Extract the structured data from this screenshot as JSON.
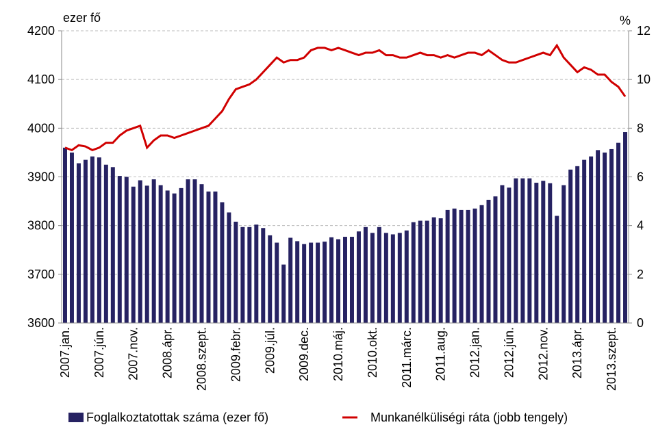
{
  "chart_data": {
    "type": "bar-line",
    "y_label": "ezer fő",
    "y2_label": "%",
    "categories": [
      "2007.jan.",
      null,
      null,
      null,
      null,
      "2007.jún.",
      null,
      null,
      null,
      null,
      "2007.nov.",
      null,
      null,
      null,
      null,
      "2008.ápr.",
      null,
      null,
      null,
      null,
      "2008.szept.",
      null,
      null,
      null,
      null,
      "2009.febr.",
      null,
      null,
      null,
      null,
      "2009.júl.",
      null,
      null,
      null,
      null,
      "2009.dec.",
      null,
      null,
      null,
      null,
      "2010.máj.",
      null,
      null,
      null,
      null,
      "2010.okt.",
      null,
      null,
      null,
      null,
      "2011.márc.",
      null,
      null,
      null,
      null,
      "2011.aug.",
      null,
      null,
      null,
      null,
      "2012.jan.",
      null,
      null,
      null,
      null,
      "2012.jún.",
      null,
      null,
      null,
      null,
      "2012.nov.",
      null,
      null,
      null,
      null,
      "2013.ápr.",
      null,
      null,
      null,
      null,
      "2013.szept.",
      null,
      null
    ],
    "series": [
      {
        "name": "Foglalkoztatottak száma (ezer fő)",
        "color": "#262262",
        "type": "bar",
        "values": [
          3960,
          3950,
          3928,
          3935,
          3942,
          3940,
          3925,
          3920,
          3902,
          3900,
          3880,
          3893,
          3882,
          3895,
          3883,
          3872,
          3866,
          3877,
          3895,
          3895,
          3885,
          3870,
          3870,
          3848,
          3827,
          3808,
          3797,
          3797,
          3802,
          3795,
          3780,
          3765,
          3720,
          3775,
          3768,
          3762,
          3765,
          3765,
          3767,
          3776,
          3772,
          3777,
          3777,
          3788,
          3797,
          3785,
          3797,
          3785,
          3782,
          3785,
          3790,
          3807,
          3810,
          3810,
          3817,
          3815,
          3832,
          3835,
          3832,
          3832,
          3835,
          3842,
          3853,
          3860,
          3883,
          3878,
          3897,
          3897,
          3897,
          3888,
          3892,
          3887,
          3820,
          3883,
          3915,
          3922,
          3935,
          3942,
          3955,
          3950,
          3957,
          3970,
          3992
        ]
      },
      {
        "name": "Munkanélküliségi ráta (jobb tengely)",
        "color": "#d00000",
        "type": "line",
        "axis": "y2",
        "values": [
          7.2,
          7.1,
          7.3,
          7.25,
          7.1,
          7.2,
          7.4,
          7.4,
          7.7,
          7.9,
          8.0,
          8.1,
          7.2,
          7.5,
          7.7,
          7.7,
          7.6,
          7.7,
          7.8,
          7.9,
          8.0,
          8.1,
          8.4,
          8.7,
          9.2,
          9.6,
          9.7,
          9.8,
          10.0,
          10.3,
          10.6,
          10.9,
          10.7,
          10.8,
          10.8,
          10.9,
          11.2,
          11.3,
          11.3,
          11.2,
          11.3,
          11.2,
          11.1,
          11.0,
          11.1,
          11.1,
          11.2,
          11.0,
          11.0,
          10.9,
          10.9,
          11.0,
          11.1,
          11.0,
          11.0,
          10.9,
          11.0,
          10.9,
          11.0,
          11.1,
          11.1,
          11.0,
          11.2,
          11.0,
          10.8,
          10.7,
          10.7,
          10.8,
          10.9,
          11.0,
          11.1,
          11.0,
          11.4,
          10.9,
          10.6,
          10.3,
          10.5,
          10.4,
          10.2,
          10.2,
          9.9,
          9.7,
          9.3
        ]
      }
    ],
    "ylim": [
      3600,
      4200
    ],
    "yticks": [
      3600,
      3700,
      3800,
      3900,
      4000,
      4100,
      4200
    ],
    "y2lim": [
      0,
      12
    ],
    "y2ticks": [
      0,
      2,
      4,
      6,
      8,
      10,
      12
    ],
    "grid": true,
    "legend": "bottom"
  }
}
